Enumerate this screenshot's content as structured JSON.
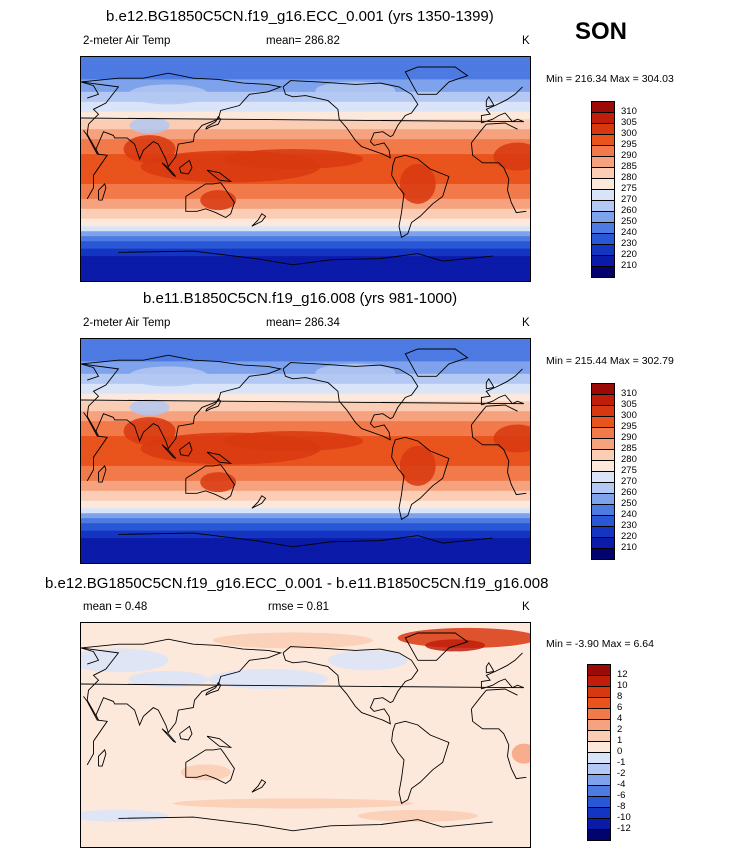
{
  "season": "SON",
  "panels": [
    {
      "title": "b.e12.BG1850C5CN.f19_g16.ECC_0.001 (yrs 1350-1399)",
      "left": "2-meter Air Temp",
      "center": "mean= 286.82",
      "units": "K",
      "minmax": "Min = 216.34 Max = 304.03",
      "kind": "abs"
    },
    {
      "title": "b.e11.B1850C5CN.f19_g16.008 (yrs 981-1000)",
      "left": "2-meter Air Temp",
      "center": "mean= 286.34",
      "units": "K",
      "minmax": "Min = 215.44 Max = 302.79",
      "kind": "abs"
    },
    {
      "title": "b.e12.BG1850C5CN.f19_g16.ECC_0.001 - b.e11.B1850C5CN.f19_g16.008",
      "left": "mean =   0.48",
      "center": "rmse =   0.81",
      "units": "K",
      "minmax": "Min =  -3.90 Max =   6.64",
      "kind": "diff"
    }
  ],
  "legend_abs": {
    "labels": [
      "310",
      "305",
      "300",
      "295",
      "290",
      "285",
      "280",
      "275",
      "270",
      "260",
      "250",
      "240",
      "230",
      "220",
      "210"
    ],
    "colors": [
      "#9b0a06",
      "#c01e0a",
      "#d8380f",
      "#e9531c",
      "#f27a4a",
      "#f7a27e",
      "#fbcdb4",
      "#fde9dc",
      "#d9e4f9",
      "#b3c8f2",
      "#7ea3ec",
      "#4d7be2",
      "#2a57d6",
      "#1434c2",
      "#0b1aa8",
      "#03036e"
    ]
  },
  "legend_diff": {
    "labels": [
      "12",
      "10",
      "8",
      "6",
      "4",
      "2",
      "1",
      "0",
      "-1",
      "-2",
      "-4",
      "-6",
      "-8",
      "-10",
      "-12"
    ],
    "colors": [
      "#9b0a06",
      "#c01e0a",
      "#d8380f",
      "#e9531c",
      "#f27a4a",
      "#f7a27e",
      "#fbcdb4",
      "#fde9dc",
      "#d9e4f9",
      "#b3c8f2",
      "#7ea3ec",
      "#4d7be2",
      "#2a57d6",
      "#1434c2",
      "#0b1aa8",
      "#03036e"
    ]
  }
}
